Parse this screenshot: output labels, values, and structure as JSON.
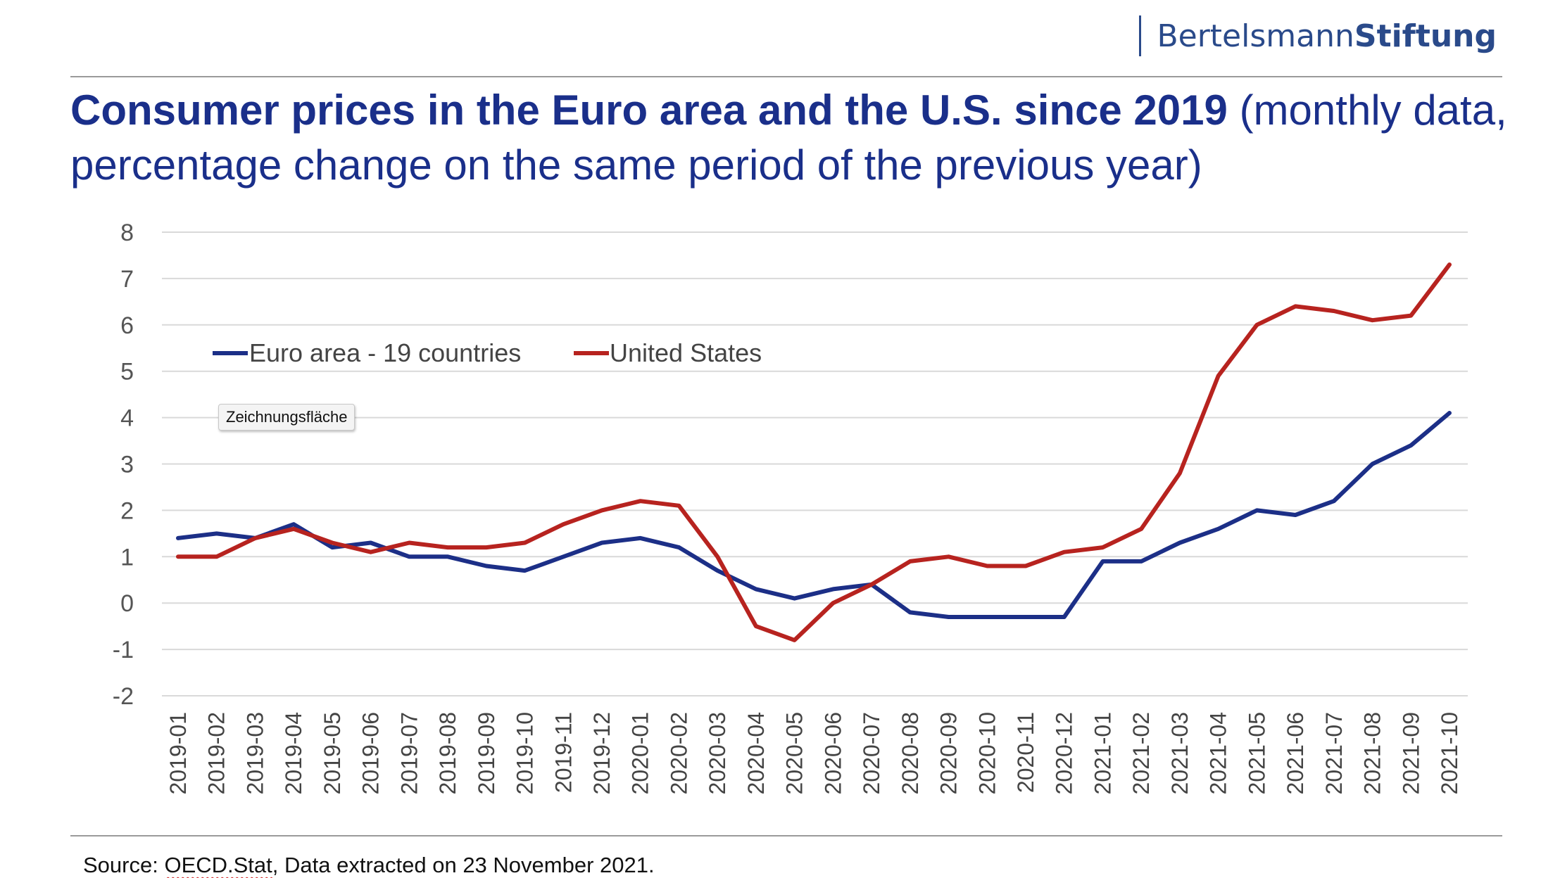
{
  "header": {
    "logo_regular": "Bertelsmann",
    "logo_bold": "Stiftung"
  },
  "title": {
    "bold": "Consumer prices in the Euro area and the U.S. since 2019",
    "regular": " (monthly data, percentage change on the same period of the previous year)"
  },
  "tooltip": "Zeichnungsfläche",
  "source": {
    "prefix": "Source: ",
    "link": "OECD.Stat",
    "suffix": ", Data extracted on 23 November 2021."
  },
  "colors": {
    "euro": "#1c2f87",
    "us": "#b7231f",
    "title": "#1a2f8a",
    "grid": "#d9d9d9"
  },
  "chart_data": {
    "type": "line",
    "title": "",
    "xlabel": "",
    "ylabel": "",
    "ylim": [
      -2,
      8
    ],
    "yticks": [
      -2,
      -1,
      0,
      1,
      2,
      3,
      4,
      5,
      6,
      7,
      8
    ],
    "grid": true,
    "legend_position": "top-left",
    "categories": [
      "2019-01",
      "2019-02",
      "2019-03",
      "2019-04",
      "2019-05",
      "2019-06",
      "2019-07",
      "2019-08",
      "2019-09",
      "2019-10",
      "2019-11",
      "2019-12",
      "2020-01",
      "2020-02",
      "2020-03",
      "2020-04",
      "2020-05",
      "2020-06",
      "2020-07",
      "2020-08",
      "2020-09",
      "2020-10",
      "2020-11",
      "2020-12",
      "2021-01",
      "2021-02",
      "2021-03",
      "2021-04",
      "2021-05",
      "2021-06",
      "2021-07",
      "2021-08",
      "2021-09",
      "2021-10"
    ],
    "series": [
      {
        "name": "Euro area - 19 countries",
        "color": "#1c2f87",
        "values": [
          1.4,
          1.5,
          1.4,
          1.7,
          1.2,
          1.3,
          1.0,
          1.0,
          0.8,
          0.7,
          1.0,
          1.3,
          1.4,
          1.2,
          0.7,
          0.3,
          0.1,
          0.3,
          0.4,
          -0.2,
          -0.3,
          -0.3,
          -0.3,
          -0.3,
          0.9,
          0.9,
          1.3,
          1.6,
          2.0,
          1.9,
          2.2,
          3.0,
          3.4,
          4.1
        ]
      },
      {
        "name": "United States",
        "color": "#b7231f",
        "values": [
          1.0,
          1.0,
          1.4,
          1.6,
          1.3,
          1.1,
          1.3,
          1.2,
          1.2,
          1.3,
          1.7,
          2.0,
          2.2,
          2.1,
          1.0,
          -0.5,
          -0.8,
          0.0,
          0.4,
          0.9,
          1.0,
          0.8,
          0.8,
          1.1,
          1.2,
          1.6,
          2.8,
          4.9,
          6.0,
          6.4,
          6.3,
          6.1,
          6.2,
          7.3
        ]
      }
    ]
  }
}
